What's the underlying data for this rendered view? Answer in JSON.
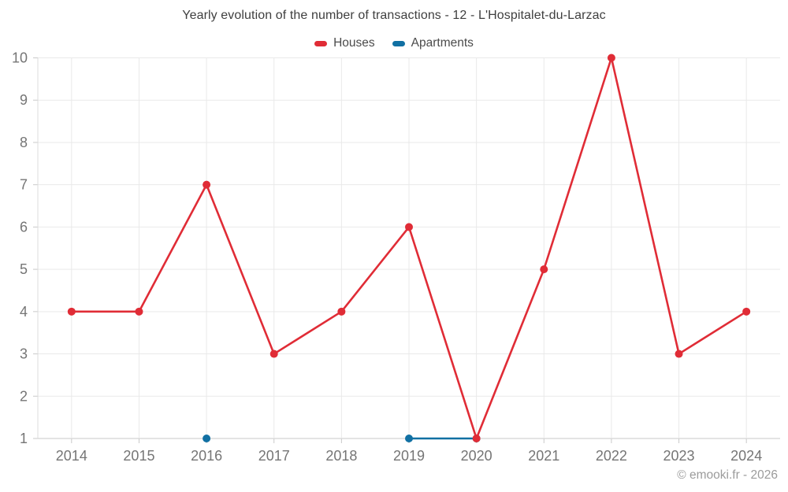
{
  "watermark": "© emooki.fr - 2026",
  "colors": {
    "houses": "#e02c36",
    "apartments": "#1170a3",
    "gridline": "#e9e9e9",
    "axis": "#c9c9c9",
    "axis_label": "#757575"
  },
  "chart_data": {
    "type": "line",
    "title": "Yearly evolution of the number of transactions - 12 - L'Hospitalet-du-Larzac",
    "x": [
      "2014",
      "2015",
      "2016",
      "2017",
      "2018",
      "2019",
      "2020",
      "2021",
      "2022",
      "2023",
      "2024"
    ],
    "series": [
      {
        "name": "Houses",
        "color": "#e02c36",
        "values": [
          4,
          4,
          7,
          3,
          4,
          6,
          1,
          5,
          10,
          3,
          4
        ]
      },
      {
        "name": "Apartments",
        "color": "#1170a3",
        "values": [
          null,
          null,
          1,
          null,
          null,
          1,
          1,
          null,
          null,
          null,
          null
        ]
      }
    ],
    "ylim": [
      1,
      10
    ],
    "yticks": [
      1,
      2,
      3,
      4,
      5,
      6,
      7,
      8,
      9,
      10
    ],
    "xlabel": "",
    "ylabel": "",
    "grid": true,
    "legend_position": "top"
  }
}
